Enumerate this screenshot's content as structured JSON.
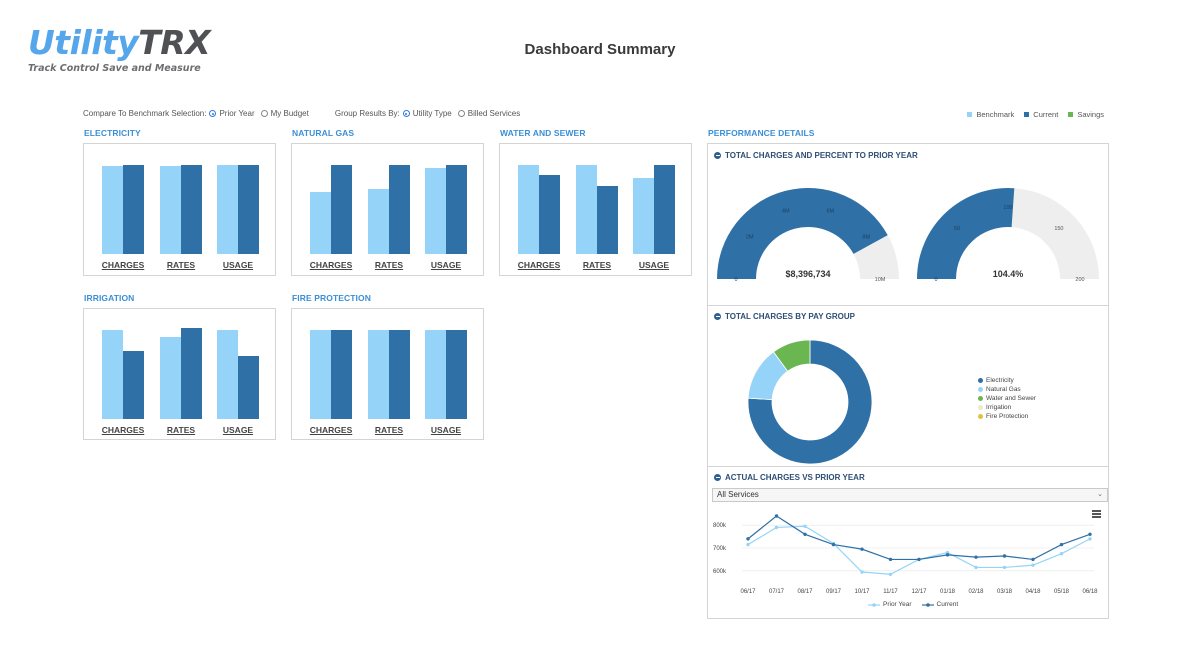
{
  "logo": {
    "part1": "Utility",
    "part2": "TRX",
    "tagline": "Track Control Save and Measure"
  },
  "page_title": "Dashboard Summary",
  "controls": {
    "benchmark_label": "Compare To Benchmark Selection:",
    "benchmark_options": [
      {
        "label": "Prior Year",
        "selected": true
      },
      {
        "label": "My Budget",
        "selected": false
      }
    ],
    "group_label": "Group Results By:",
    "group_options": [
      {
        "label": "Utility Type",
        "selected": true
      },
      {
        "label": "Billed Services",
        "selected": false
      }
    ]
  },
  "legend": [
    {
      "label": "Benchmark",
      "color": "#95d4f8"
    },
    {
      "label": "Current",
      "color": "#2f70a6"
    },
    {
      "label": "Savings",
      "color": "#6ab650"
    }
  ],
  "colors": {
    "benchmark": "#95d4f8",
    "current": "#2f70a6",
    "savings": "#6ab650",
    "accent": "#3a8fd6"
  },
  "utilities": [
    {
      "title": "ELECTRICITY",
      "labels": [
        "CHARGES",
        "RATES",
        "USAGE"
      ],
      "benchmark": [
        0.82,
        0.82,
        0.83
      ],
      "current": [
        0.83,
        0.83,
        0.83
      ]
    },
    {
      "title": "NATURAL GAS",
      "labels": [
        "CHARGES",
        "RATES",
        "USAGE"
      ],
      "benchmark": [
        0.58,
        0.61,
        0.8
      ],
      "current": [
        0.83,
        0.83,
        0.83
      ]
    },
    {
      "title": "WATER AND SEWER",
      "labels": [
        "CHARGES",
        "RATES",
        "USAGE"
      ],
      "benchmark": [
        0.83,
        0.83,
        0.71
      ],
      "current": [
        0.74,
        0.64,
        0.83
      ]
    },
    {
      "title": "IRRIGATION",
      "labels": [
        "CHARGES",
        "RATES",
        "USAGE"
      ],
      "benchmark": [
        0.83,
        0.77,
        0.83
      ],
      "current": [
        0.64,
        0.85,
        0.59
      ]
    },
    {
      "title": "FIRE PROTECTION",
      "labels": [
        "CHARGES",
        "RATES",
        "USAGE"
      ],
      "benchmark": [
        0.83,
        0.83,
        0.83
      ],
      "current": [
        0.83,
        0.83,
        0.83
      ]
    }
  ],
  "performance": {
    "title": "PERFORMANCE DETAILS",
    "total_charges": {
      "title": "TOTAL CHARGES AND PERCENT TO PRIOR YEAR",
      "gauge1": {
        "value_label": "$8,396,734",
        "value": 8396734,
        "max": 10000000,
        "ticks": [
          "0",
          "2M",
          "4M",
          "6M",
          "8M",
          "10M"
        ]
      },
      "gauge2": {
        "value_label": "104.4%",
        "value": 104.4,
        "max": 200,
        "ticks": [
          "0",
          "50",
          "100",
          "150",
          "200"
        ]
      }
    },
    "pay_group": {
      "title": "TOTAL CHARGES BY PAY GROUP",
      "chart_data": {
        "type": "pie",
        "series": [
          {
            "name": "Electricity",
            "value": 76,
            "color": "#2f70a6"
          },
          {
            "name": "Natural Gas",
            "value": 14,
            "color": "#95d4f8"
          },
          {
            "name": "Water and Sewer",
            "value": 10,
            "color": "#6ab650"
          },
          {
            "name": "Irrigation",
            "value": 0,
            "color": "#e8ecc8"
          },
          {
            "name": "Fire Protection",
            "value": 0,
            "color": "#e0c23e"
          }
        ]
      }
    },
    "actual_vs_prior": {
      "title": "ACTUAL CHARGES VS PRIOR YEAR",
      "select_value": "All Services",
      "chart_data": {
        "type": "line",
        "x": [
          "06/17",
          "07/17",
          "08/17",
          "09/17",
          "10/17",
          "11/17",
          "12/17",
          "01/18",
          "02/18",
          "03/18",
          "04/18",
          "05/18",
          "06/18"
        ],
        "y_ticks": [
          "600k",
          "700k",
          "800k"
        ],
        "ylim": [
          560000,
          840000
        ],
        "series": [
          {
            "name": "Prior Year",
            "color": "#95d4f8",
            "values": [
              715000,
              790000,
              795000,
              720000,
              595000,
              585000,
              650000,
              680000,
              615000,
              615000,
              625000,
              675000,
              740000
            ]
          },
          {
            "name": "Current",
            "color": "#2f70a6",
            "values": [
              740000,
              840000,
              760000,
              715000,
              695000,
              650000,
              650000,
              670000,
              660000,
              665000,
              650000,
              715000,
              760000
            ]
          }
        ]
      }
    }
  }
}
